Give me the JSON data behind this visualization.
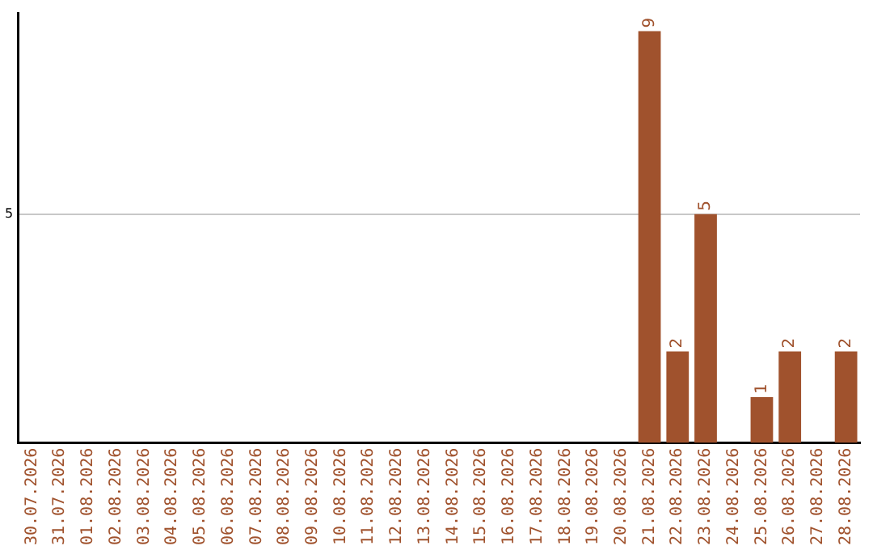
{
  "chart_data": {
    "type": "bar",
    "categories": [
      "30.07.2026",
      "31.07.2026",
      "01.08.2026",
      "02.08.2026",
      "03.08.2026",
      "04.08.2026",
      "05.08.2026",
      "06.08.2026",
      "07.08.2026",
      "08.08.2026",
      "09.08.2026",
      "10.08.2026",
      "11.08.2026",
      "12.08.2026",
      "13.08.2026",
      "14.08.2026",
      "15.08.2026",
      "16.08.2026",
      "17.08.2026",
      "18.08.2026",
      "19.08.2026",
      "20.08.2026",
      "21.08.2026",
      "22.08.2026",
      "23.08.2026",
      "24.08.2026",
      "25.08.2026",
      "26.08.2026",
      "27.08.2026",
      "28.08.2026"
    ],
    "values": [
      null,
      null,
      null,
      null,
      null,
      null,
      null,
      null,
      null,
      null,
      null,
      null,
      null,
      null,
      null,
      null,
      null,
      null,
      null,
      null,
      null,
      null,
      9,
      2,
      5,
      null,
      1,
      2,
      null,
      2
    ],
    "value_labels": [
      null,
      null,
      null,
      null,
      null,
      null,
      null,
      null,
      null,
      null,
      null,
      null,
      null,
      null,
      null,
      null,
      null,
      null,
      null,
      null,
      null,
      null,
      "9",
      "2",
      "5",
      null,
      "1",
      "2",
      null,
      "2"
    ],
    "color": "#a0522d",
    "ylim": [
      0,
      9.4
    ],
    "yticks": [
      5
    ],
    "grid": "y",
    "legend": false
  }
}
